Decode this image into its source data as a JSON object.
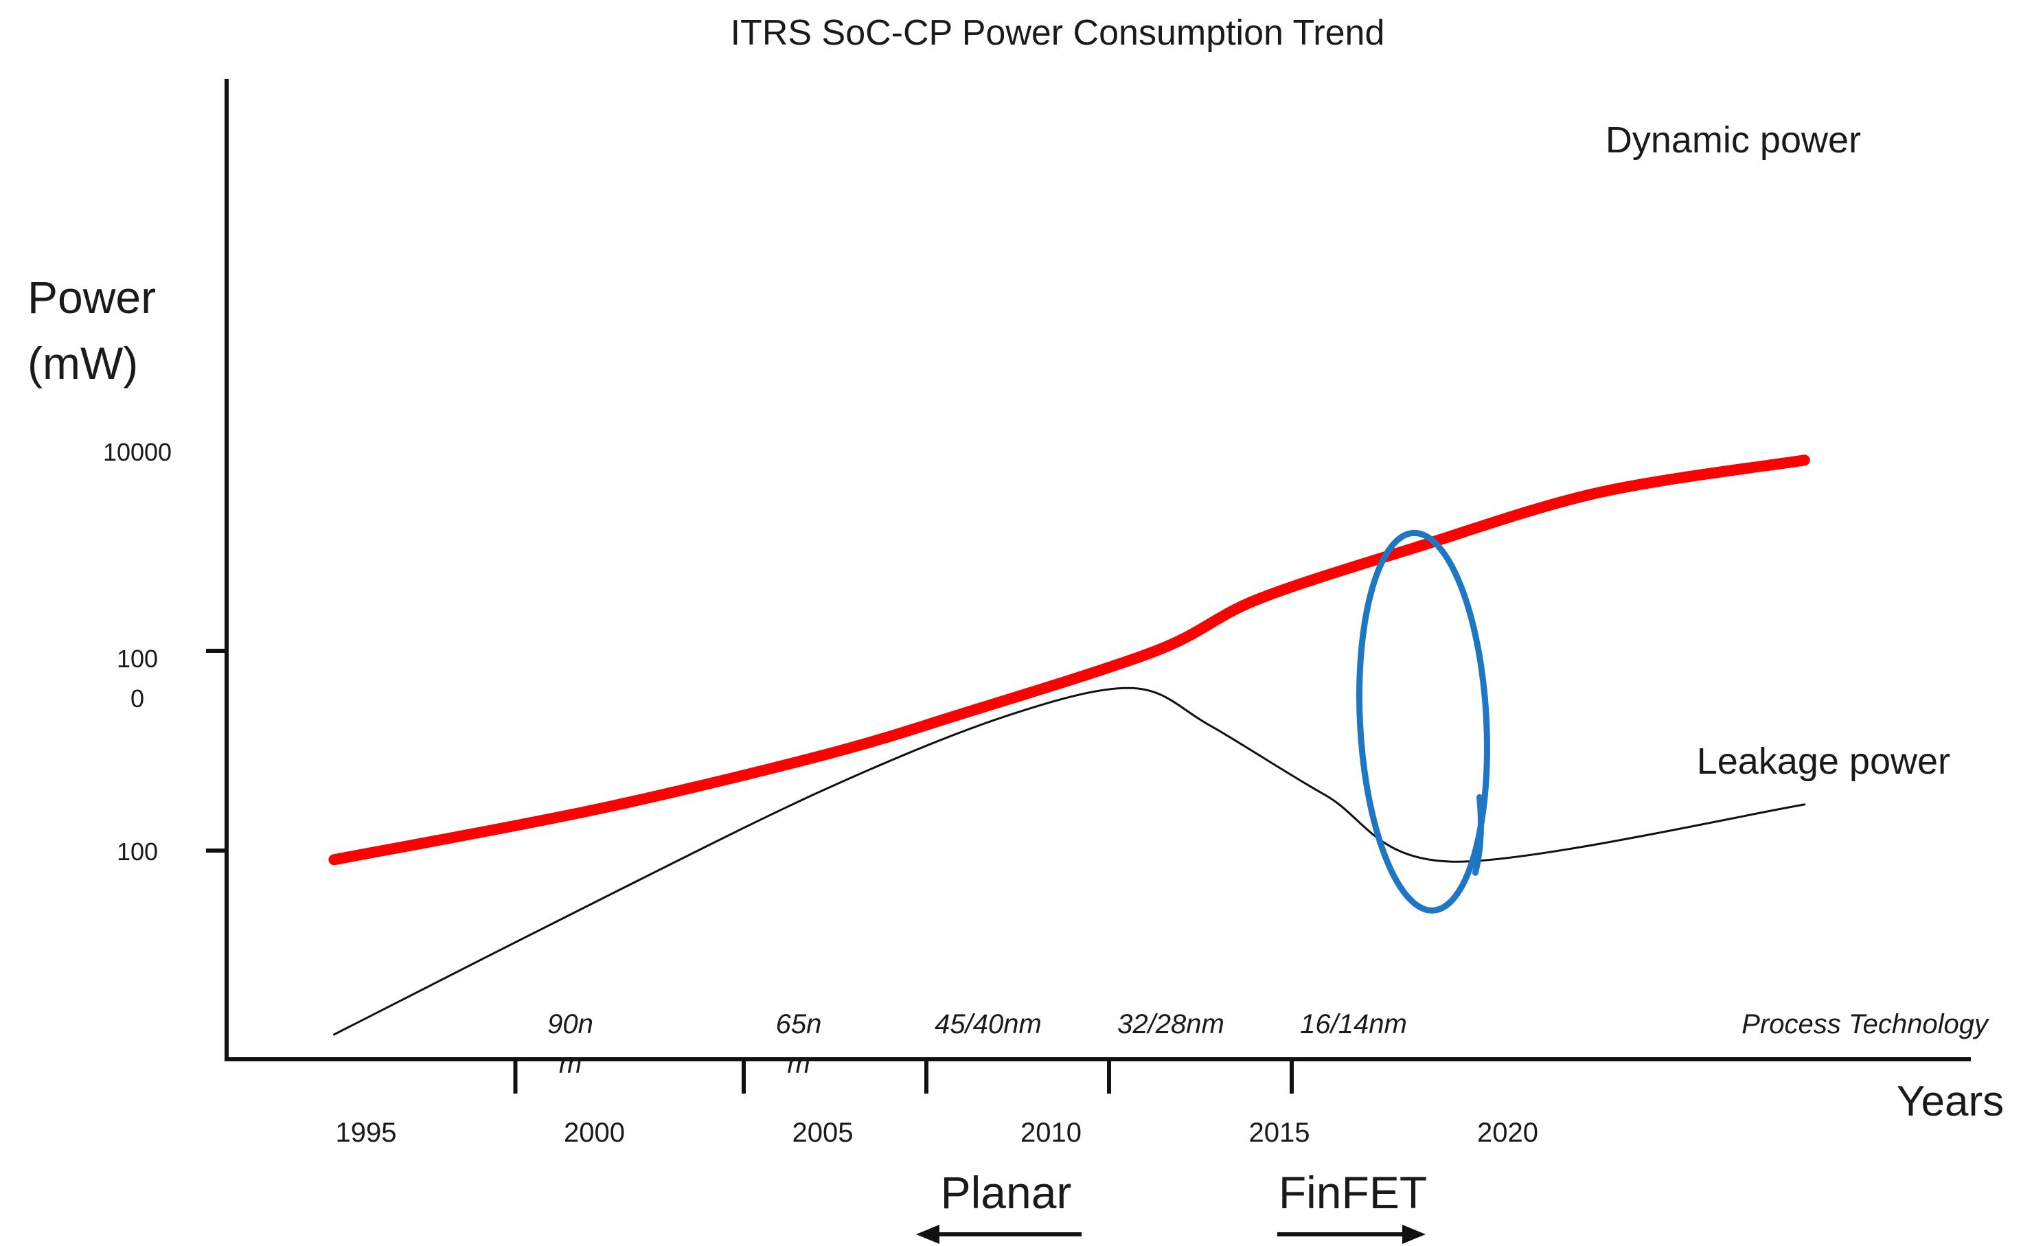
{
  "chart_data": {
    "type": "line",
    "title": "ITRS SoC-CP Power Consumption Trend",
    "ylabel_line1": "Power",
    "ylabel_line2": "(mW)",
    "xlabel": "Years",
    "y_scale": "log",
    "y_ticks": [
      {
        "value": 10000,
        "label_lines": [
          "10000"
        ],
        "has_tick": false
      },
      {
        "value": 1000,
        "label_lines": [
          "100",
          "0"
        ],
        "has_tick": true
      },
      {
        "value": 100,
        "label_lines": [
          "100"
        ],
        "has_tick": true
      }
    ],
    "x_ticks": [
      {
        "value": 1995,
        "label": "1995"
      },
      {
        "value": 2000,
        "label": "2000"
      },
      {
        "value": 2005,
        "label": "2005"
      },
      {
        "value": 2010,
        "label": "2010"
      },
      {
        "value": 2015,
        "label": "2015"
      },
      {
        "value": 2020,
        "label": "2020"
      }
    ],
    "process_nodes": [
      {
        "label_lines": [
          "90n",
          "m"
        ],
        "year": 2000
      },
      {
        "label_lines": [
          "65n",
          "m"
        ],
        "year": 2005
      },
      {
        "label_lines": [
          "45/40nm"
        ],
        "year": 2009
      },
      {
        "label_lines": [
          "32/28nm"
        ],
        "year": 2013
      },
      {
        "label_lines": [
          "16/14nm"
        ],
        "year": 2017
      }
    ],
    "process_axis_label": "Process Technology",
    "series": [
      {
        "name": "Dynamic power",
        "color": "#ff0000",
        "points": [
          [
            1994.3,
            90
          ],
          [
            2000,
            160
          ],
          [
            2005,
            300
          ],
          [
            2008,
            480
          ],
          [
            2012.3,
            1000
          ],
          [
            2014.5,
            1800
          ],
          [
            2018,
            3300
          ],
          [
            2022,
            6200
          ],
          [
            2026.5,
            9000
          ]
        ]
      },
      {
        "name": "Leakage power",
        "color": "#111111",
        "points": [
          [
            1994.3,
            12
          ],
          [
            2000,
            55
          ],
          [
            2005,
            200
          ],
          [
            2009,
            470
          ],
          [
            2011.8,
            650
          ],
          [
            2013.5,
            420
          ],
          [
            2016,
            190
          ],
          [
            2018.8,
            88
          ],
          [
            2026.5,
            170
          ]
        ]
      }
    ],
    "annotation": {
      "type": "ellipse",
      "color": "#1f77c4",
      "center_year": 2018,
      "y_top": 3900,
      "y_bottom": 50
    },
    "bands": [
      {
        "label": "Planar",
        "direction": "left"
      },
      {
        "label": "FinFET",
        "direction": "right"
      }
    ]
  }
}
